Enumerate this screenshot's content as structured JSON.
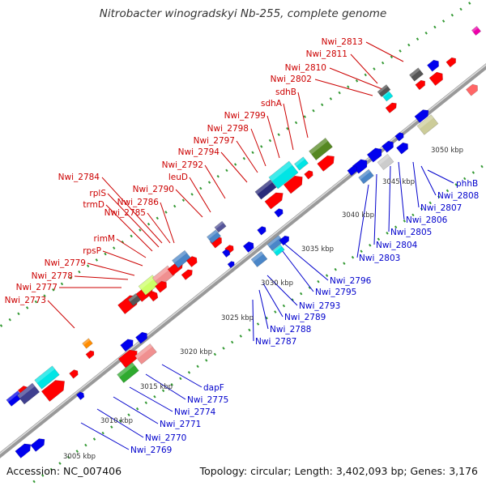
{
  "title": "Nitrobacter winogradskyi Nb-255, complete genome",
  "footer": {
    "accession": "Accession: NC_007406",
    "summary": "Topology: circular; Length: 3,402,093 bp; Genes: 3,176"
  },
  "ticks": [
    "3005 kbp",
    "3010 kbp",
    "3015 kbp",
    "3020 kbp",
    "3025 kbp",
    "3030 kbp",
    "3035 kbp",
    "3040 kbp",
    "3045 kbp",
    "3050 kbp"
  ],
  "labels_top": [
    "Nwi_2813",
    "Nwi_2811",
    "Nwi_2810",
    "Nwi_2802",
    "sdhB",
    "sdhA",
    "Nwi_2799",
    "Nwi_2798",
    "Nwi_2797",
    "Nwi_2794",
    "Nwi_2792",
    "leuD",
    "Nwi_2790",
    "Nwi_2786",
    "Nwi_2784",
    "rplS",
    "trmD",
    "Nwi_2785",
    "rimM",
    "rpsP",
    "Nwi_2779",
    "Nwi_2778",
    "Nwi_2777",
    "Nwi_2773"
  ],
  "labels_bottom": [
    "phhB",
    "Nwi_2808",
    "Nwi_2807",
    "Nwi_2806",
    "Nwi_2805",
    "Nwi_2804",
    "Nwi_2803",
    "Nwi_2796",
    "Nwi_2795",
    "Nwi_2793",
    "Nwi_2789",
    "Nwi_2788",
    "Nwi_2787",
    "dapF",
    "Nwi_2775",
    "Nwi_2774",
    "Nwi_2771",
    "Nwi_2770",
    "Nwi_2769"
  ],
  "colors": {
    "forward_gene": "#ff0000",
    "reverse_gene": "#0000ff",
    "top_label": "#cc0000",
    "bottom_label": "#0000cc",
    "backbone": "#999999",
    "dots": "#339933"
  }
}
